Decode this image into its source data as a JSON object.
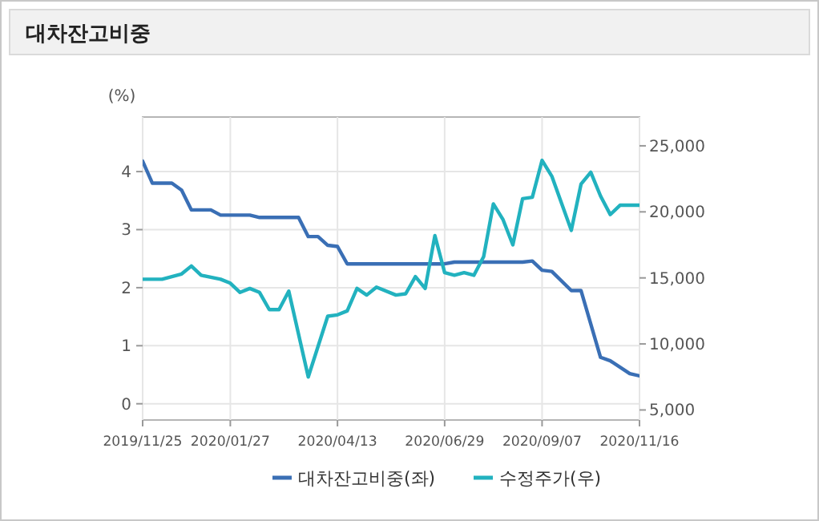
{
  "chart_data": {
    "type": "line",
    "title": "대차잔고비중",
    "ylabel": "(%)",
    "xlim": [
      "2019-11-25",
      "2020-11-16"
    ],
    "xticks": [
      {
        "value": "2019-11-25",
        "label": "2019/11/25"
      },
      {
        "value": "2020-01-27",
        "label": "2020/01/27"
      },
      {
        "value": "2020-04-13",
        "label": "2020/04/13"
      },
      {
        "value": "2020-06-29",
        "label": "2020/06/29"
      },
      {
        "value": "2020-09-07",
        "label": "2020/09/07"
      },
      {
        "value": "2020-11-16",
        "label": "2020/11/16"
      }
    ],
    "ylim": [
      -0.28,
      4.94
    ],
    "yticks": [
      0,
      1,
      2,
      3,
      4
    ],
    "y2lim": [
      4240,
      27180
    ],
    "y2ticks": [
      {
        "value": 5000,
        "label": "5,000"
      },
      {
        "value": 10000,
        "label": "10,000"
      },
      {
        "value": 15000,
        "label": "15,000"
      },
      {
        "value": 20000,
        "label": "20,000"
      },
      {
        "value": 25000,
        "label": "25,000"
      }
    ],
    "grid": true,
    "legend": "bottom",
    "line_style": "solid",
    "marker": "none",
    "series": [
      {
        "name": "대차잔고비중(좌)",
        "color": "#3a6fb5",
        "x": [
          "2019-11-25",
          "2019-12-02",
          "2019-12-16",
          "2019-12-23",
          "2019-12-30",
          "2020-01-13",
          "2020-01-20",
          "2020-02-10",
          "2020-02-17",
          "2020-03-16",
          "2020-03-23",
          "2020-03-30",
          "2020-04-06",
          "2020-04-13",
          "2020-04-20",
          "2020-06-29",
          "2020-07-06",
          "2020-08-24",
          "2020-08-31",
          "2020-09-07",
          "2020-09-14",
          "2020-09-28",
          "2020-10-05",
          "2020-10-19",
          "2020-10-26",
          "2020-11-09",
          "2020-11-16"
        ],
        "values": [
          4.18,
          3.8,
          3.8,
          3.68,
          3.34,
          3.34,
          3.25,
          3.25,
          3.21,
          3.21,
          2.88,
          2.88,
          2.73,
          2.71,
          2.41,
          2.41,
          2.44,
          2.44,
          2.46,
          2.3,
          2.28,
          1.95,
          1.95,
          0.8,
          0.74,
          0.52,
          0.48
        ]
      },
      {
        "name": "수정주가(우)",
        "color": "#22b2bf",
        "axis": "y2",
        "x": [
          "2019-11-25",
          "2019-12-09",
          "2019-12-23",
          "2019-12-30",
          "2020-01-06",
          "2020-01-20",
          "2020-01-27",
          "2020-02-03",
          "2020-02-10",
          "2020-02-17",
          "2020-02-24",
          "2020-03-02",
          "2020-03-09",
          "2020-03-23",
          "2020-04-06",
          "2020-04-13",
          "2020-04-20",
          "2020-04-27",
          "2020-05-04",
          "2020-05-11",
          "2020-05-25",
          "2020-06-01",
          "2020-06-08",
          "2020-06-15",
          "2020-06-22",
          "2020-06-29",
          "2020-07-06",
          "2020-07-13",
          "2020-07-20",
          "2020-07-27",
          "2020-08-03",
          "2020-08-10",
          "2020-08-17",
          "2020-08-24",
          "2020-08-31",
          "2020-09-07",
          "2020-09-14",
          "2020-09-28",
          "2020-10-05",
          "2020-10-12",
          "2020-10-19",
          "2020-10-26",
          "2020-11-02",
          "2020-11-16"
        ],
        "values": [
          14900,
          14900,
          15300,
          15900,
          15200,
          14900,
          14600,
          13900,
          14200,
          13900,
          12600,
          12600,
          14000,
          7500,
          12100,
          12200,
          12500,
          14200,
          13700,
          14300,
          13700,
          13800,
          15100,
          14200,
          18200,
          15400,
          15200,
          15400,
          15200,
          16600,
          20600,
          19400,
          17500,
          21000,
          21100,
          23900,
          22700,
          18600,
          22100,
          23000,
          21200,
          19800,
          20500,
          20500
        ]
      }
    ]
  }
}
